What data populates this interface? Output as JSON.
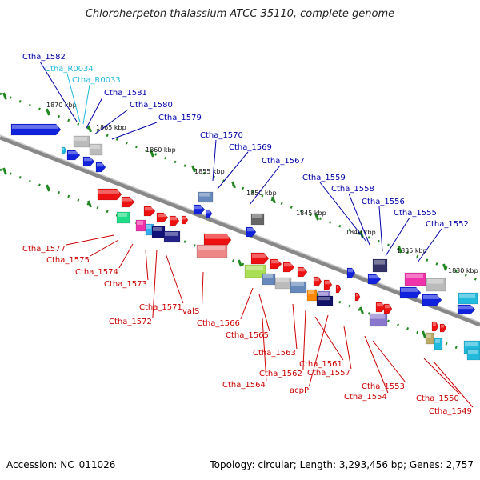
{
  "title": "Chloroherpeton thalassium ATCC 35110, complete genome",
  "footer": {
    "accession": "Accession: NC_011026",
    "summary": "Topology: circular; Length: 3,293,456 bp; Genes: 2,757"
  },
  "colors": {
    "top_label": "#0000aa",
    "bottom_label": "#cc0000",
    "rna_label": "#22bbdd",
    "backbone": "#888888",
    "tick": "#228822"
  },
  "kbp_labels": [
    "1870 kbp",
    "1865 kbp",
    "1860 kbp",
    "1855 kbp",
    "1850 kbp",
    "1845 kbp",
    "1840 kbp",
    "1835 kbp",
    "1830 kbp"
  ],
  "top_labels": [
    "Ctha_1582",
    "Ctha_R0034",
    "Ctha_R0033",
    "Ctha_1581",
    "Ctha_1580",
    "Ctha_1579",
    "Ctha_1570",
    "Ctha_1569",
    "Ctha_1567",
    "Ctha_1559",
    "Ctha_1558",
    "Ctha_1556",
    "Ctha_1555",
    "Ctha_1552"
  ],
  "bottom_labels": [
    "Ctha_1577",
    "Ctha_1575",
    "Ctha_1574",
    "Ctha_1573",
    "Ctha_1571",
    "Ctha_1572",
    "valS",
    "Ctha_1566",
    "Ctha_1565",
    "Ctha_1563",
    "Ctha_1562",
    "Ctha_1564",
    "Ctha_1561",
    "acpP",
    "Ctha_1557",
    "Ctha_1554",
    "Ctha_1553",
    "Ctha_1550",
    "Ctha_1549"
  ]
}
